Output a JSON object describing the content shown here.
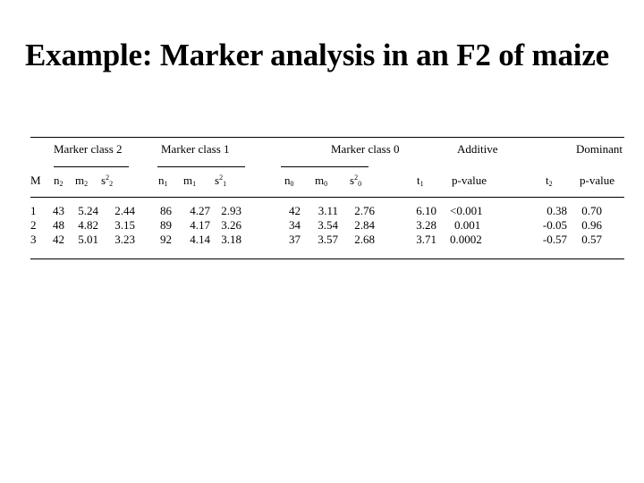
{
  "title": "Example: Marker analysis in an F2 of maize",
  "groups": {
    "class2": "Marker class 2",
    "class1": "Marker class 1",
    "class0": "Marker class 0",
    "additive": "Additive",
    "dominant": "Dominant"
  },
  "columns": {
    "marker": "M",
    "n2": "n",
    "m2": "m",
    "s2": "s",
    "n1": "n",
    "m1": "m",
    "s1": "s",
    "n0": "n",
    "m0": "m",
    "s0": "s",
    "t1": "t",
    "p1": "p-value",
    "t2": "t",
    "p2": "p-value"
  },
  "rows": [
    {
      "m": "1",
      "n2": "43",
      "m2": "5.24",
      "s2": "2.44",
      "n1": "86",
      "m1": "4.27",
      "s1": "2.93",
      "n0": "42",
      "m0": "3.11",
      "s0": "2.76",
      "t1": "6.10",
      "p1": "<0.001",
      "t2": "0.38",
      "p2": "0.70"
    },
    {
      "m": "2",
      "n2": "48",
      "m2": "4.82",
      "s2": "3.15",
      "n1": "89",
      "m1": "4.17",
      "s1": "3.26",
      "n0": "34",
      "m0": "3.54",
      "s0": "2.84",
      "t1": "3.28",
      "p1": "0.001",
      "t2": "-0.05",
      "p2": "0.96"
    },
    {
      "m": "3",
      "n2": "42",
      "m2": "5.01",
      "s2": "3.23",
      "n1": "92",
      "m1": "4.14",
      "s1": "3.18",
      "n0": "37",
      "m0": "3.57",
      "s0": "2.68",
      "t1": "3.71",
      "p1": "0.0002",
      "t2": "-0.57",
      "p2": "0.57"
    }
  ]
}
